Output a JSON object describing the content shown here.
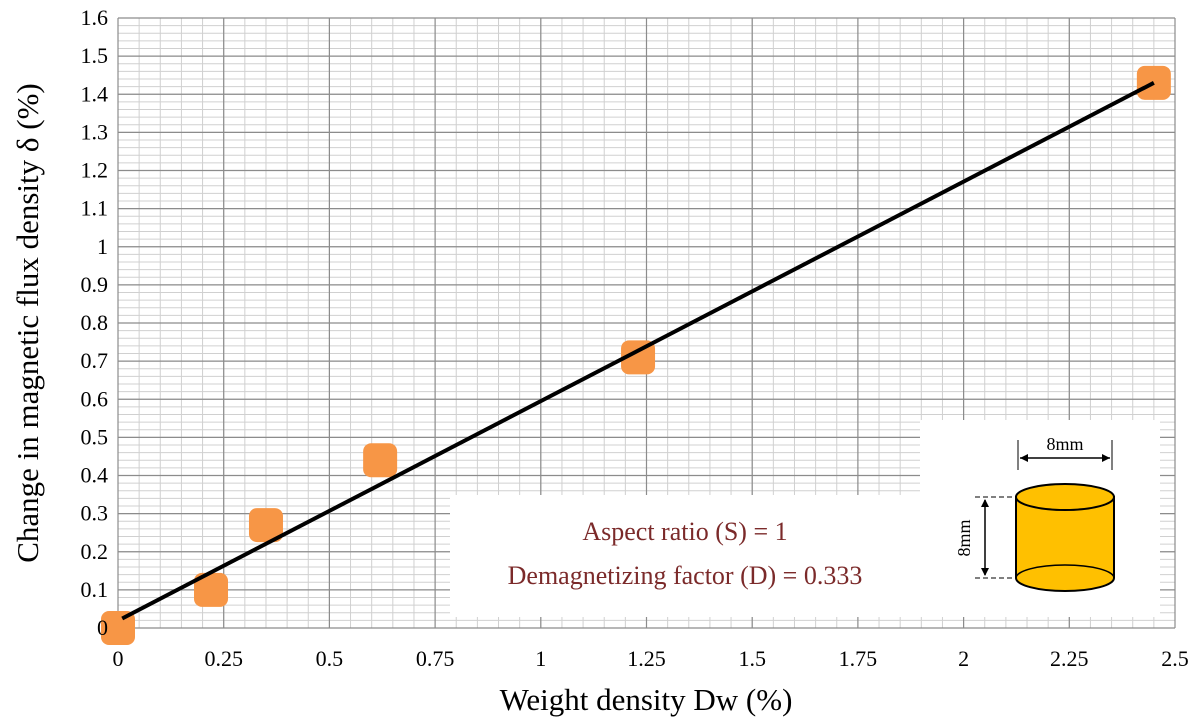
{
  "chart_data": {
    "type": "scatter",
    "x_label": "Weight density Dw (%)",
    "y_label": "Change in magnetic flux density δ (%)",
    "x": [
      0,
      0.22,
      0.35,
      0.62,
      1.23,
      2.45
    ],
    "values": [
      0,
      0.1,
      0.27,
      0.44,
      0.71,
      1.43
    ],
    "color": "#f79646",
    "trendline": {
      "x": [
        0.01,
        2.45
      ],
      "values": [
        0.025,
        1.43
      ],
      "color": "#000000"
    },
    "xlim": [
      0,
      2.5
    ],
    "ylim": [
      0,
      1.6
    ],
    "xticks": [
      0,
      0.25,
      0.5,
      0.75,
      1,
      1.25,
      1.5,
      1.75,
      2,
      2.25,
      2.5
    ],
    "yticks": [
      0,
      0.1,
      0.2,
      0.3,
      0.4,
      0.5,
      0.6,
      0.7,
      0.8,
      0.9,
      1,
      1.1,
      1.2,
      1.3,
      1.4,
      1.5,
      1.6
    ],
    "grid": true,
    "minor_grid": {
      "x": 0.05,
      "y": 0.02
    },
    "annotations": [
      "Aspect ratio (S) = 1",
      "Demagnetizing factor (D) = 0.333"
    ],
    "annotation_color": "#7b2a2a",
    "inset": {
      "width_label": "8mm",
      "height_label": "8mm"
    }
  }
}
